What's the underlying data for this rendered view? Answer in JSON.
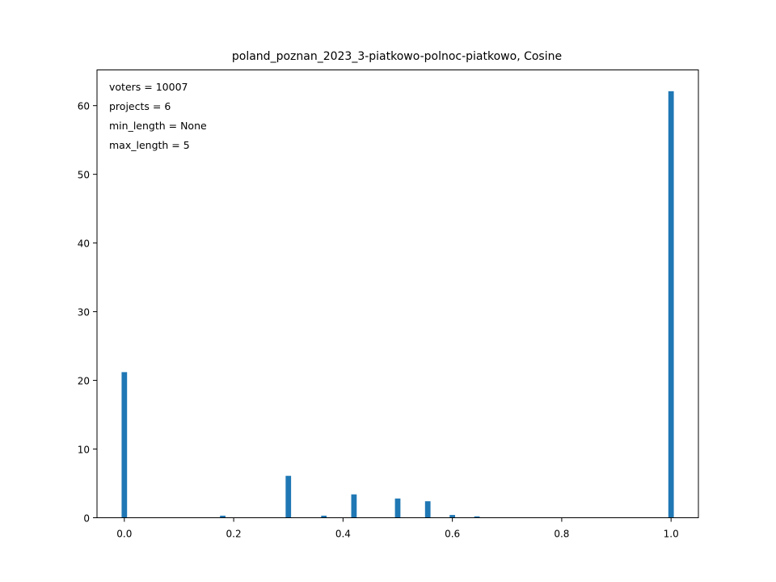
{
  "chart_data": {
    "type": "bar",
    "title": "poland_poznan_2023_3-piatkowo-polnoc-piatkowo, Cosine",
    "annotations": [
      "voters = 10007",
      "projects = 6",
      "min_length = None",
      "max_length = 5"
    ],
    "xlim": [
      -0.05,
      1.05
    ],
    "ylim": [
      0,
      65.2
    ],
    "xticks": [
      0.0,
      0.2,
      0.4,
      0.6,
      0.8,
      1.0
    ],
    "xtick_labels": [
      "0.0",
      "0.2",
      "0.4",
      "0.6",
      "0.8",
      "1.0"
    ],
    "yticks": [
      0,
      10,
      20,
      30,
      40,
      50,
      60
    ],
    "ytick_labels": [
      "0",
      "10",
      "20",
      "30",
      "40",
      "50",
      "60"
    ],
    "bar_width": 0.01,
    "x": [
      0.0,
      0.13,
      0.18,
      0.22,
      0.3,
      0.33,
      0.365,
      0.42,
      0.5,
      0.555,
      0.6,
      0.645,
      0.68,
      1.0
    ],
    "values": [
      21.2,
      0.05,
      0.3,
      0.05,
      6.1,
      0.05,
      0.3,
      3.4,
      2.8,
      2.4,
      0.4,
      0.2,
      0.05,
      62.1
    ],
    "color": "#1f77b4",
    "grid": false,
    "legend": "none"
  }
}
